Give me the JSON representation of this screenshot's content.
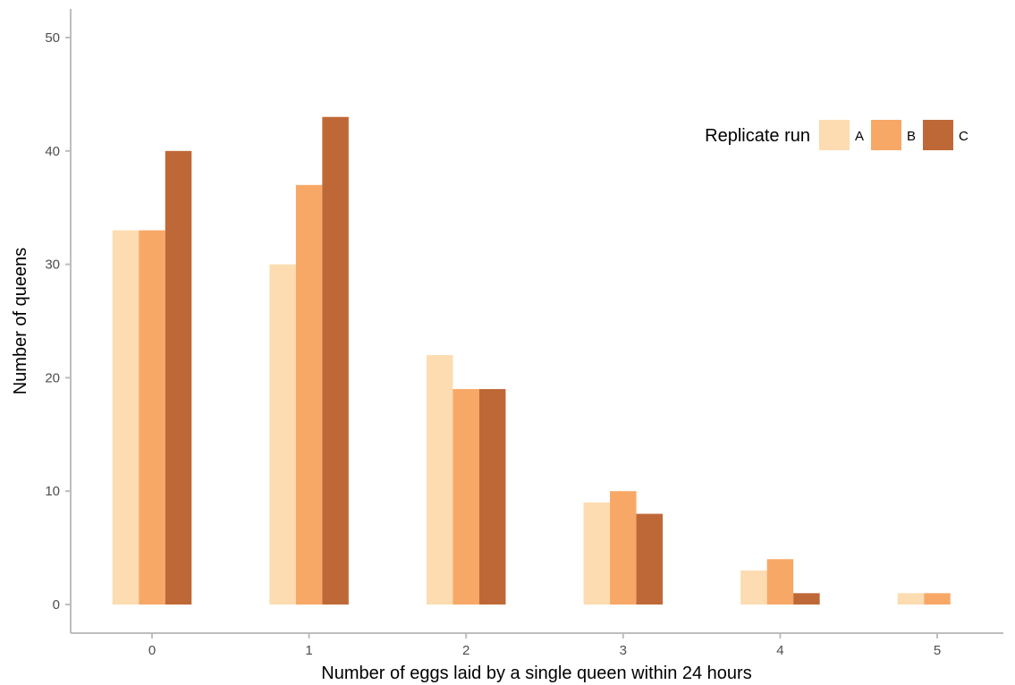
{
  "chart_data": {
    "type": "bar",
    "title": "",
    "xlabel": "Number of eggs laid by a single queen within 24 hours",
    "ylabel": "Number of queens",
    "categories": [
      "0",
      "1",
      "2",
      "3",
      "4",
      "5"
    ],
    "series": [
      {
        "name": "A",
        "color": "#fcdcb0",
        "values": [
          33,
          30,
          22,
          9,
          3,
          1
        ]
      },
      {
        "name": "B",
        "color": "#f8a866",
        "values": [
          33,
          37,
          19,
          10,
          4,
          1
        ]
      },
      {
        "name": "C",
        "color": "#bf6837",
        "values": [
          40,
          43,
          19,
          8,
          1,
          0
        ]
      }
    ],
    "ylim": [
      0,
      50
    ],
    "yticks": [
      0,
      10,
      20,
      30,
      40,
      50
    ],
    "grid": false,
    "legend": {
      "title": "Replicate run",
      "position": "top-right",
      "orientation": "horizontal"
    }
  }
}
